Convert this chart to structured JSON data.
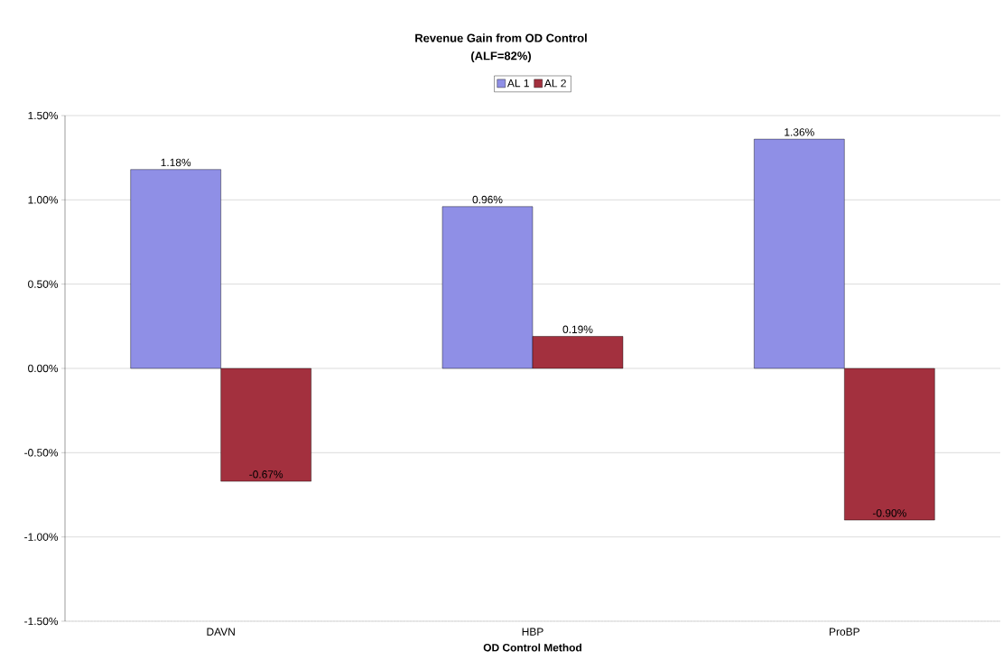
{
  "chart_data": {
    "type": "bar",
    "title": "Revenue Gain from OD Control",
    "subtitle": "(ALF=82%)",
    "xlabel": "OD Control Method",
    "categories": [
      "DAVN",
      "HBP",
      "ProBP"
    ],
    "series": [
      {
        "name": "AL 1",
        "color": "#8f8fe6",
        "values": [
          1.18,
          0.96,
          1.36
        ],
        "value_labels": [
          "1.18%",
          "0.96%",
          "1.36%"
        ]
      },
      {
        "name": "AL 2",
        "color": "#a3303e",
        "values": [
          -0.67,
          0.19,
          -0.9
        ],
        "value_labels": [
          "-0.67%",
          "0.19%",
          "-0.90%"
        ]
      }
    ],
    "ylim": [
      -1.5,
      1.5
    ],
    "yticks": [
      {
        "value": -1.5,
        "label": "-1.50%"
      },
      {
        "value": -1.0,
        "label": "-1.00%"
      },
      {
        "value": -0.5,
        "label": "-0.50%"
      },
      {
        "value": 0,
        "label": "0.00%"
      },
      {
        "value": 0.5,
        "label": "0.50%"
      },
      {
        "value": 1.0,
        "label": "1.00%"
      },
      {
        "value": 1.5,
        "label": "1.50%"
      }
    ],
    "grid": "y",
    "legend": "top"
  }
}
